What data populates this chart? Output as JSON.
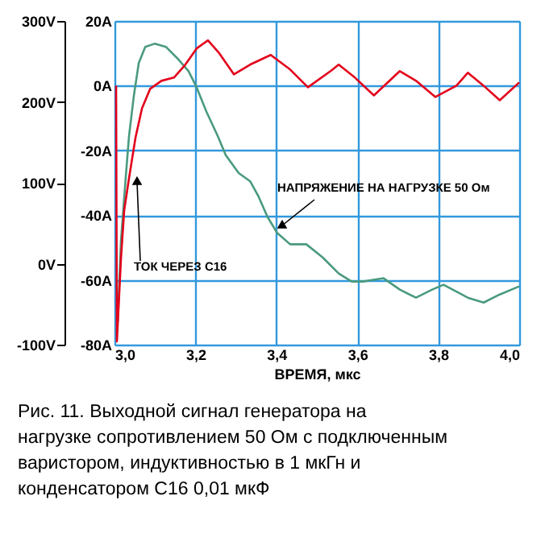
{
  "chart_data": {
    "type": "line",
    "xlabel": "ВРЕМЯ, мкс",
    "x": [
      3.008,
      3.016,
      3.028,
      3.036,
      3.048,
      3.06,
      3.076,
      3.1,
      3.127,
      3.155,
      3.183,
      3.203,
      3.227,
      3.255,
      3.275,
      3.307,
      3.335,
      3.355,
      3.378,
      3.402,
      3.434,
      3.474,
      3.514,
      3.554,
      3.586,
      3.614,
      3.665,
      3.705,
      3.745,
      3.785,
      3.813,
      3.873,
      3.912,
      3.952,
      4.0
    ],
    "series": [
      {
        "name": "НАПРЯЖЕНИЕ НА НАГРУЗКЕ 50 Ом",
        "color": "#4a9a7e",
        "values": [
          -72,
          28,
          108,
          158,
          208,
          248,
          268,
          272,
          268,
          254,
          238,
          218,
          188,
          158,
          134,
          112,
          102,
          84,
          58,
          38,
          24,
          24,
          8,
          -12,
          -22,
          -22,
          -18,
          -32,
          -42,
          -32,
          -26,
          -42,
          -48,
          -38,
          -28
        ]
      },
      {
        "name": "ТОК ЧЕРЕЗ С16",
        "color": "#e3001b",
        "axis": "y2",
        "x": [
          3.004,
          3.006,
          3.016,
          3.024,
          3.036,
          3.052,
          3.068,
          3.088,
          3.116,
          3.147,
          3.175,
          3.203,
          3.231,
          3.259,
          3.295,
          3.335,
          3.386,
          3.434,
          3.478,
          3.534,
          3.554,
          3.594,
          3.641,
          3.705,
          3.745,
          3.793,
          3.845,
          3.873,
          3.912,
          3.952,
          4.0
        ],
        "values": [
          0,
          -79,
          -53.5,
          -38.5,
          -28.5,
          -16,
          -7,
          -1,
          1.5,
          2.5,
          6.5,
          11.5,
          14,
          10,
          3.5,
          6.5,
          9.5,
          5,
          -0.5,
          4.5,
          6.5,
          2.5,
          -3,
          4.5,
          1.5,
          -3.5,
          0,
          4,
          0,
          -4.5,
          1
        ]
      }
    ],
    "xlim": [
      3.0,
      4.0
    ],
    "xticks": [
      {
        "value": 3.0,
        "label": "3,0"
      },
      {
        "value": 3.2,
        "label": "3,2"
      },
      {
        "value": 3.4,
        "label": "3,4"
      },
      {
        "value": 3.6,
        "label": "3,6"
      },
      {
        "value": 3.8,
        "label": "3,8"
      },
      {
        "value": 4.0,
        "label": "4,0"
      }
    ],
    "ylim": [
      -100,
      300
    ],
    "yticks": [
      {
        "value": -100,
        "label": "-100V"
      },
      {
        "value": 0,
        "label": "0V"
      },
      {
        "value": 100,
        "label": "100V"
      },
      {
        "value": 200,
        "label": "200V"
      },
      {
        "value": 300,
        "label": "300V"
      }
    ],
    "y2lim": [
      -80,
      20
    ],
    "y2ticks": [
      {
        "value": -80,
        "label": "-80A"
      },
      {
        "value": -60,
        "label": "-60A"
      },
      {
        "value": -40,
        "label": "-40A"
      },
      {
        "value": -20,
        "label": "-20A"
      },
      {
        "value": 0,
        "label": "0A"
      },
      {
        "value": 20,
        "label": "20A"
      }
    ],
    "grid": true,
    "annotations": [
      "Рис. 11. Выходной сигнал генератора на нагрузке сопротивлением 50 Ом с подключенным варистором, индуктивностью в 1 мкГн и конденсатором С16 0,01 мкФ"
    ]
  }
}
